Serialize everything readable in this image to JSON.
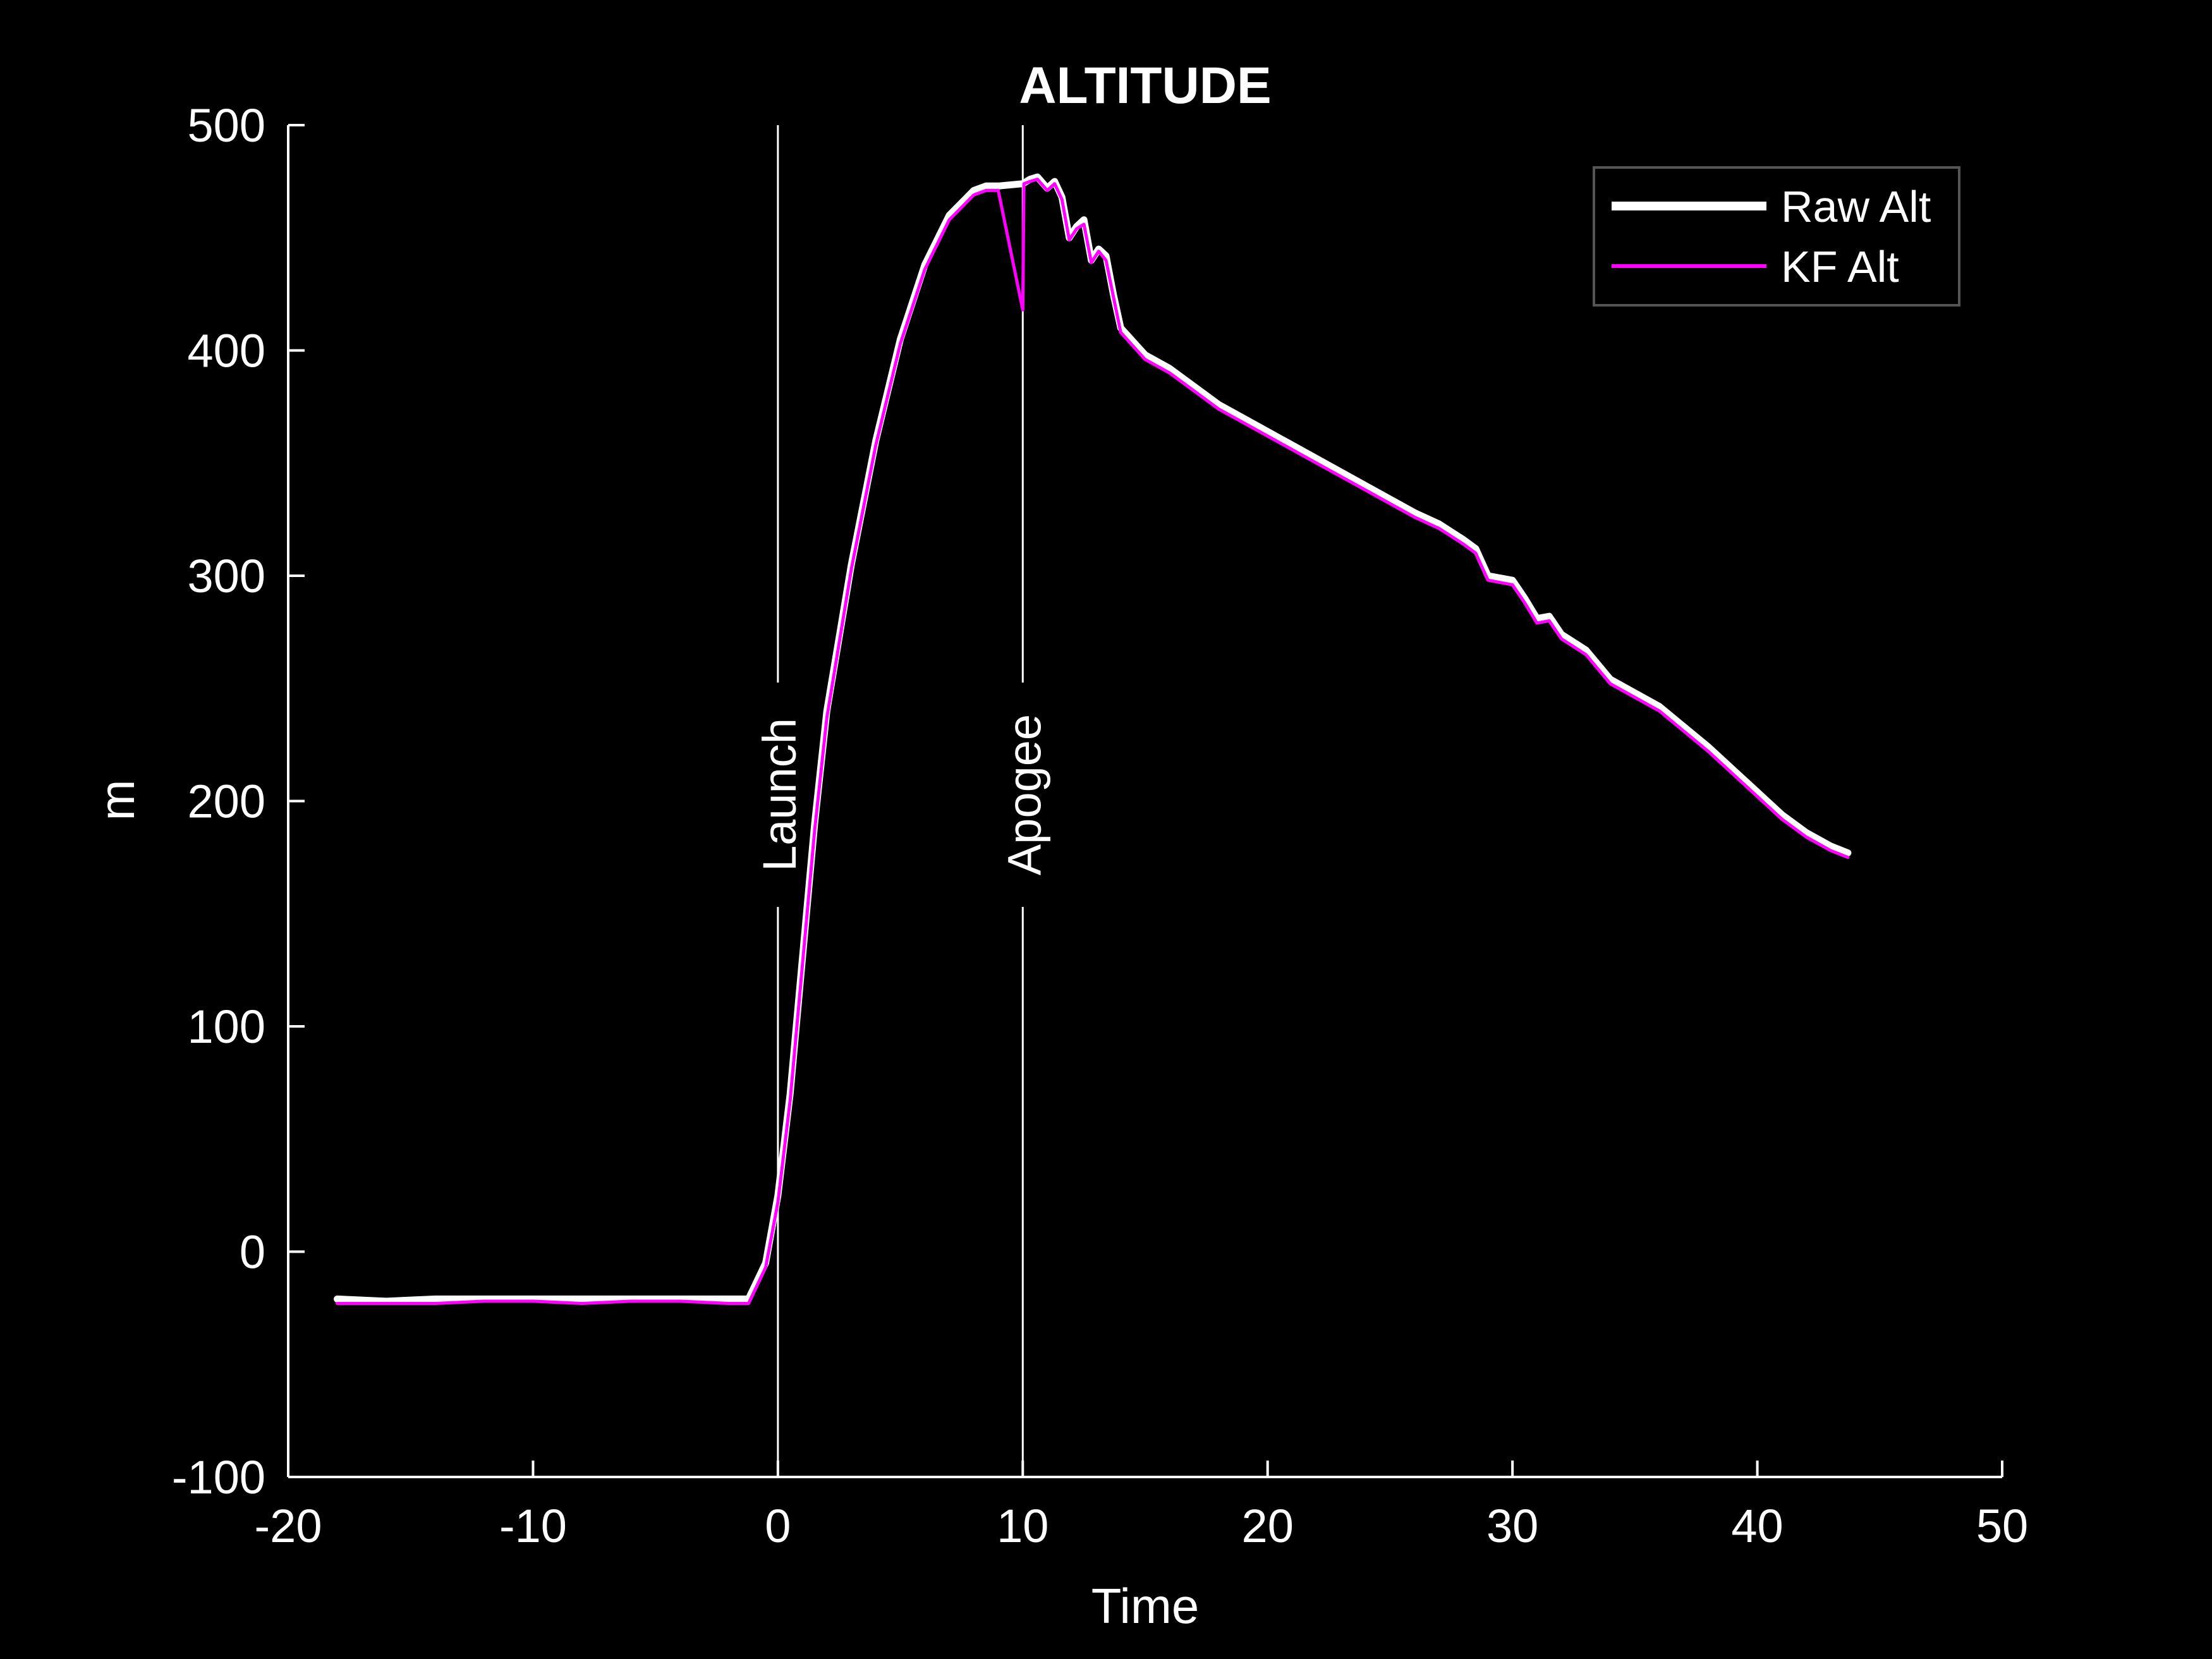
{
  "colors": {
    "background": "#000000",
    "axis": "#ffffff",
    "raw_alt": "#ffffff",
    "kf_alt": "#ff00ff",
    "legend_border": "#555555"
  },
  "chart_data": {
    "type": "line",
    "title": "ALTITUDE",
    "xlabel": "Time",
    "ylabel": "m",
    "xlim": [
      -20,
      50
    ],
    "ylim": [
      -100,
      500
    ],
    "xticks": [
      -20,
      -10,
      0,
      10,
      20,
      30,
      40,
      50
    ],
    "yticks": [
      -100,
      0,
      100,
      200,
      300,
      400,
      500
    ],
    "xtick_labels": [
      "-20",
      "-10",
      "0",
      "10",
      "20",
      "30",
      "40",
      "50"
    ],
    "ytick_labels": [
      "-100",
      "0",
      "100",
      "200",
      "300",
      "400",
      "500"
    ],
    "grid": false,
    "legend_position": "top-right",
    "events": [
      {
        "label": "Launch",
        "x": 0
      },
      {
        "label": "Apogee",
        "x": 10
      }
    ],
    "series": [
      {
        "name": "Raw Alt",
        "color": "#ffffff",
        "x": [
          -18,
          -16,
          -14,
          -12,
          -10,
          -8,
          -6,
          -4,
          -2,
          -1.2,
          -0.5,
          0,
          0.5,
          1,
          1.5,
          2,
          3,
          4,
          5,
          6,
          7,
          8,
          8.5,
          9,
          10,
          10.3,
          10.6,
          11,
          11.3,
          11.6,
          11.9,
          12.2,
          12.5,
          12.8,
          13.1,
          13.4,
          13.7,
          14,
          14.5,
          15,
          16,
          17,
          18,
          19,
          20,
          22,
          24,
          26,
          27,
          28,
          28.5,
          29,
          30,
          30.5,
          31,
          31.5,
          32,
          33,
          34,
          35,
          36,
          37,
          38,
          39,
          40,
          41,
          42,
          43,
          43.7
        ],
        "y": [
          -21,
          -22,
          -21,
          -21,
          -21,
          -21,
          -21,
          -21,
          -21,
          -21,
          -5,
          25,
          70,
          130,
          190,
          240,
          305,
          360,
          405,
          438,
          460,
          471,
          473,
          473,
          474,
          476,
          477,
          472,
          475,
          468,
          450,
          455,
          458,
          440,
          445,
          442,
          425,
          410,
          404,
          398,
          392,
          384,
          376,
          370,
          364,
          352,
          340,
          328,
          323,
          316,
          312,
          300,
          298,
          290,
          281,
          282,
          274,
          267,
          254,
          248,
          242,
          233,
          224,
          214,
          204,
          194,
          186,
          180,
          177
        ]
      },
      {
        "name": "KF Alt",
        "color": "#ff00ff",
        "x": [
          -18,
          -16,
          -14,
          -12,
          -10,
          -8,
          -6,
          -4,
          -2,
          -1.2,
          -0.5,
          0,
          0.5,
          1,
          1.5,
          2,
          3,
          4,
          5,
          6,
          7,
          8,
          8.5,
          9,
          10,
          10.05,
          10.3,
          10.6,
          11,
          11.3,
          11.6,
          11.9,
          12.2,
          12.5,
          12.8,
          13.1,
          13.4,
          13.7,
          14,
          14.5,
          15,
          16,
          17,
          18,
          19,
          20,
          22,
          24,
          26,
          27,
          28,
          28.5,
          29,
          30,
          30.5,
          31,
          31.5,
          32,
          33,
          34,
          35,
          36,
          37,
          38,
          39,
          40,
          41,
          42,
          43,
          43.7
        ],
        "y": [
          -23,
          -23,
          -23,
          -22,
          -22,
          -23,
          -22,
          -22,
          -23,
          -23,
          -7,
          22,
          67,
          127,
          187,
          237,
          303,
          358,
          403,
          436,
          458,
          469,
          471,
          471,
          418,
          474,
          475,
          476,
          471,
          474,
          467,
          449,
          454,
          456,
          439,
          444,
          440,
          424,
          408,
          402,
          396,
          390,
          382,
          374,
          368,
          362,
          350,
          338,
          326,
          321,
          314,
          310,
          298,
          296,
          288,
          279,
          280,
          272,
          265,
          252,
          246,
          240,
          231,
          222,
          212,
          202,
          192,
          184,
          178,
          175
        ]
      }
    ]
  }
}
